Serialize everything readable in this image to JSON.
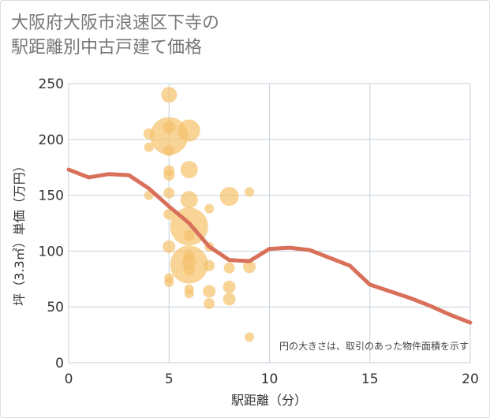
{
  "title": "大阪府大阪市浪速区下寺の\n駅距離別中古戸建て価格",
  "chart_data": {
    "type": "scatter",
    "title": "大阪府大阪市浪速区下寺の駅距離別中古戸建て価格",
    "xlabel": "駅距離（分）",
    "ylabel": "坪（3.3㎡）単価（万円）",
    "xlim": [
      0,
      20
    ],
    "ylim": [
      0,
      250
    ],
    "xticks": [
      0,
      5,
      10,
      15,
      20
    ],
    "yticks": [
      0,
      50,
      100,
      150,
      200,
      250
    ],
    "grid": true,
    "annotation": "円の大きさは、取引のあった物件面積を示す",
    "bubble_color": "#f5c26b",
    "line_color": "#d9705a",
    "bubbles": [
      {
        "x": 4,
        "y": 205,
        "size": 7
      },
      {
        "x": 4,
        "y": 193,
        "size": 6
      },
      {
        "x": 4,
        "y": 150,
        "size": 6
      },
      {
        "x": 5,
        "y": 240,
        "size": 10
      },
      {
        "x": 5,
        "y": 211,
        "size": 8
      },
      {
        "x": 5,
        "y": 203,
        "size": 24
      },
      {
        "x": 5,
        "y": 190,
        "size": 7
      },
      {
        "x": 5,
        "y": 172,
        "size": 7
      },
      {
        "x": 5,
        "y": 168,
        "size": 7
      },
      {
        "x": 5,
        "y": 152,
        "size": 7
      },
      {
        "x": 5,
        "y": 133,
        "size": 7
      },
      {
        "x": 5,
        "y": 104,
        "size": 8
      },
      {
        "x": 5,
        "y": 76,
        "size": 6
      },
      {
        "x": 5,
        "y": 72,
        "size": 6
      },
      {
        "x": 6,
        "y": 208,
        "size": 14
      },
      {
        "x": 6,
        "y": 173,
        "size": 11
      },
      {
        "x": 6,
        "y": 146,
        "size": 11
      },
      {
        "x": 6,
        "y": 122,
        "size": 24
      },
      {
        "x": 6,
        "y": 114,
        "size": 7
      },
      {
        "x": 6,
        "y": 96,
        "size": 7
      },
      {
        "x": 6,
        "y": 90,
        "size": 9
      },
      {
        "x": 6,
        "y": 88,
        "size": 24
      },
      {
        "x": 6,
        "y": 83,
        "size": 7
      },
      {
        "x": 6,
        "y": 66,
        "size": 6
      },
      {
        "x": 6,
        "y": 62,
        "size": 6
      },
      {
        "x": 7,
        "y": 138,
        "size": 6
      },
      {
        "x": 7,
        "y": 104,
        "size": 6
      },
      {
        "x": 7,
        "y": 87,
        "size": 7
      },
      {
        "x": 7,
        "y": 64,
        "size": 8
      },
      {
        "x": 7,
        "y": 53,
        "size": 7
      },
      {
        "x": 8,
        "y": 149,
        "size": 12
      },
      {
        "x": 8,
        "y": 85,
        "size": 7
      },
      {
        "x": 8,
        "y": 68,
        "size": 8
      },
      {
        "x": 8,
        "y": 57,
        "size": 8
      },
      {
        "x": 9,
        "y": 153,
        "size": 6
      },
      {
        "x": 9,
        "y": 86,
        "size": 8
      },
      {
        "x": 9,
        "y": 23,
        "size": 6
      }
    ],
    "line": {
      "x": [
        0,
        1,
        2,
        3,
        4,
        5,
        6,
        7,
        8,
        9,
        10,
        11,
        12,
        13,
        14,
        15,
        16,
        17,
        18,
        19,
        20
      ],
      "y": [
        173,
        166,
        169,
        168,
        156,
        140,
        125,
        104,
        92,
        91,
        102,
        103,
        101,
        94,
        87,
        70,
        64,
        58,
        51,
        43,
        36
      ]
    }
  }
}
